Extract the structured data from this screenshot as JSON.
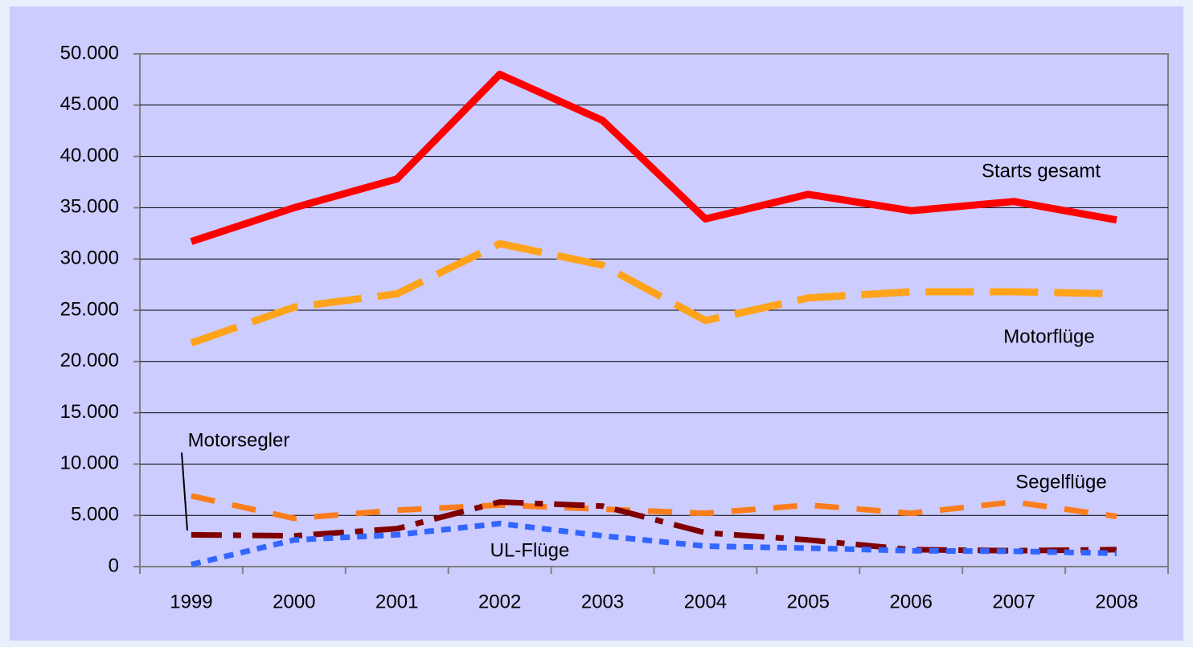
{
  "chart_data": {
    "type": "line",
    "categories": [
      "1999",
      "2000",
      "2001",
      "2002",
      "2003",
      "2004",
      "2005",
      "2006",
      "2007",
      "2008"
    ],
    "ylim": [
      0,
      50000
    ],
    "yticks": [
      0,
      {
        "value": 5000,
        "label": "5.000"
      },
      {
        "value": 10000,
        "label": "10.000"
      },
      {
        "value": 15000,
        "label": "15.000"
      },
      {
        "value": 20000,
        "label": "20.000"
      },
      {
        "value": 25000,
        "label": "25.000"
      },
      {
        "value": 30000,
        "label": "30.000"
      },
      {
        "value": 35000,
        "label": "35.000"
      },
      {
        "value": 40000,
        "label": "40.000"
      },
      {
        "value": 45000,
        "label": "45.000"
      },
      {
        "value": 50000,
        "label": "50.000"
      }
    ],
    "grid": true,
    "series": [
      {
        "name": "Starts gesamt",
        "color": "#ff0000",
        "dash": "solid",
        "values": [
          31700,
          35000,
          37800,
          48000,
          43500,
          33900,
          36300,
          34700,
          35600,
          33800
        ]
      },
      {
        "name": "Motorflüge",
        "color": "#ffa31a",
        "dash": "long-dash",
        "values": [
          21800,
          25300,
          26600,
          31500,
          29400,
          24000,
          26200,
          26800,
          26800,
          26600
        ]
      },
      {
        "name": "Segelflüge",
        "color": "#fb7d1c",
        "dash": "dash",
        "values": [
          6900,
          4700,
          5500,
          6000,
          5600,
          5200,
          6000,
          5200,
          6300,
          4900
        ]
      },
      {
        "name": "Motorsegler",
        "color": "#800000",
        "dash": "dash-dot",
        "values": [
          3100,
          3000,
          3700,
          6300,
          5900,
          3300,
          2600,
          1650,
          1550,
          1650
        ]
      },
      {
        "name": "UL-Flüge",
        "color": "#3366ff",
        "dash": "dot",
        "values": [
          200,
          2600,
          3100,
          4200,
          3000,
          2000,
          1800,
          1550,
          1500,
          1300
        ]
      }
    ]
  }
}
